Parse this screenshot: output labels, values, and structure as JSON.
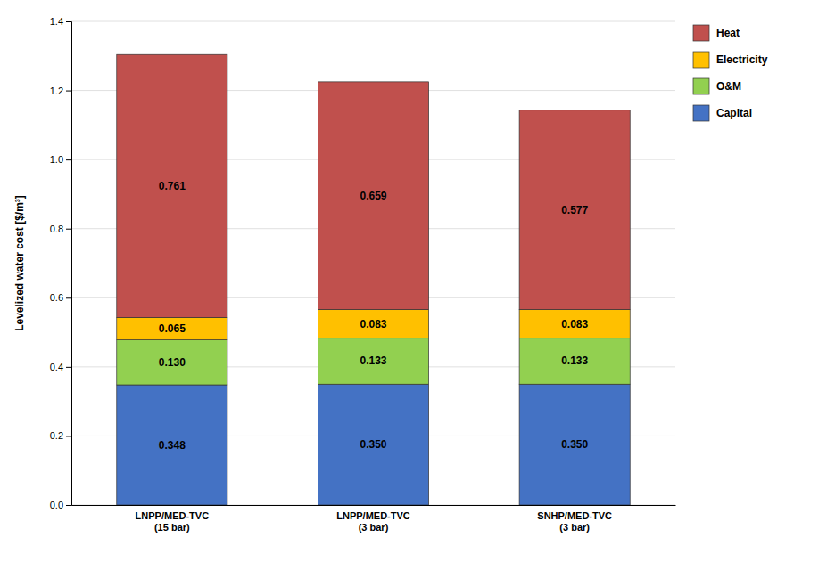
{
  "chart_data": {
    "type": "bar",
    "stacked": true,
    "categories": [
      "LNPP/MED-TVC\n(15 bar)",
      "LNPP/MED-TVC\n(3 bar)",
      "SNHP/MED-TVC\n(3 bar)"
    ],
    "series": [
      {
        "name": "Capital",
        "color": "#4472C4",
        "values": [
          0.348,
          0.35,
          0.35
        ],
        "value_labels": [
          "0.348",
          "0.350",
          "0.350"
        ]
      },
      {
        "name": "O&M",
        "color": "#92D050",
        "values": [
          0.13,
          0.133,
          0.133
        ],
        "value_labels": [
          "0.130",
          "0.133",
          "0.133"
        ]
      },
      {
        "name": "Electricity",
        "color": "#FFC000",
        "values": [
          0.065,
          0.083,
          0.083
        ],
        "value_labels": [
          "0.065",
          "0.083",
          "0.083"
        ]
      },
      {
        "name": "Heat",
        "color": "#C0504D",
        "values": [
          0.761,
          0.659,
          0.577
        ],
        "value_labels": [
          "0.761",
          "0.659",
          "0.577"
        ]
      }
    ],
    "ylabel": "Levelized water cost [$/m³]",
    "ylim": [
      0,
      1.4
    ],
    "yticks": [
      {
        "value": 0.0,
        "label": "0.0"
      },
      0.2,
      0.4,
      0.6,
      0.8,
      {
        "value": 1.0,
        "label": "1.0"
      },
      1.2,
      1.4
    ],
    "grid": true,
    "legend": "right",
    "data_labels": true
  }
}
